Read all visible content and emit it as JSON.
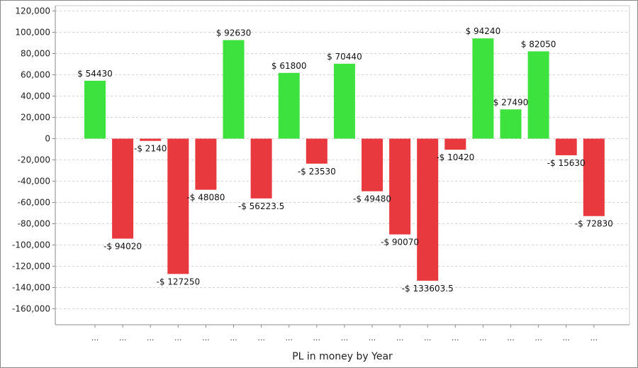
{
  "chart_data": {
    "type": "bar",
    "title": "",
    "xlabel": "PL in money by Year",
    "ylabel": "",
    "ylim": [
      -175000,
      125000
    ],
    "yticks": [
      120000,
      100000,
      80000,
      60000,
      40000,
      20000,
      0,
      -20000,
      -40000,
      -60000,
      -80000,
      -100000,
      -120000,
      -140000,
      -160000
    ],
    "ytick_labels": [
      "120,000",
      "100,000",
      "80,000",
      "60,000",
      "40,000",
      "20,000",
      "0",
      "-20,000",
      "-40,000",
      "-60,000",
      "-80,000",
      "-100,000",
      "-120,000",
      "-140,000",
      "-160,000"
    ],
    "grid": true,
    "legend": "none",
    "categories": [
      "...",
      "...",
      "...",
      "...",
      "...",
      "...",
      "...",
      "...",
      "...",
      "...",
      "...",
      "...",
      "...",
      "...",
      "...",
      "...",
      "...",
      "...",
      "..."
    ],
    "values": [
      54430,
      -94020,
      -2140,
      -127250,
      -48080,
      92630,
      -56223.5,
      61800,
      -23530,
      70440,
      -49480,
      -90070,
      -133603.5,
      -10420,
      94240,
      27490,
      82050,
      -15630,
      -72830
    ],
    "data_labels": [
      "$ 54430",
      "-$ 94020",
      "-$ 2140",
      "-$ 127250",
      "-$ 48080",
      "$ 92630",
      "-$ 56223.5",
      "$ 61800",
      "-$ 23530",
      "$ 70440",
      "-$ 49480",
      "-$ 90070",
      "-$ 133603.5",
      "-$ 10420",
      "$ 94240",
      "$ 27490",
      "$ 82050",
      "-$ 15630",
      "-$ 72830"
    ],
    "colors": {
      "positive": "#3ee23e",
      "negative": "#e8393f",
      "grid": "#d4d4d4",
      "axis": "#8c8c8c"
    }
  }
}
